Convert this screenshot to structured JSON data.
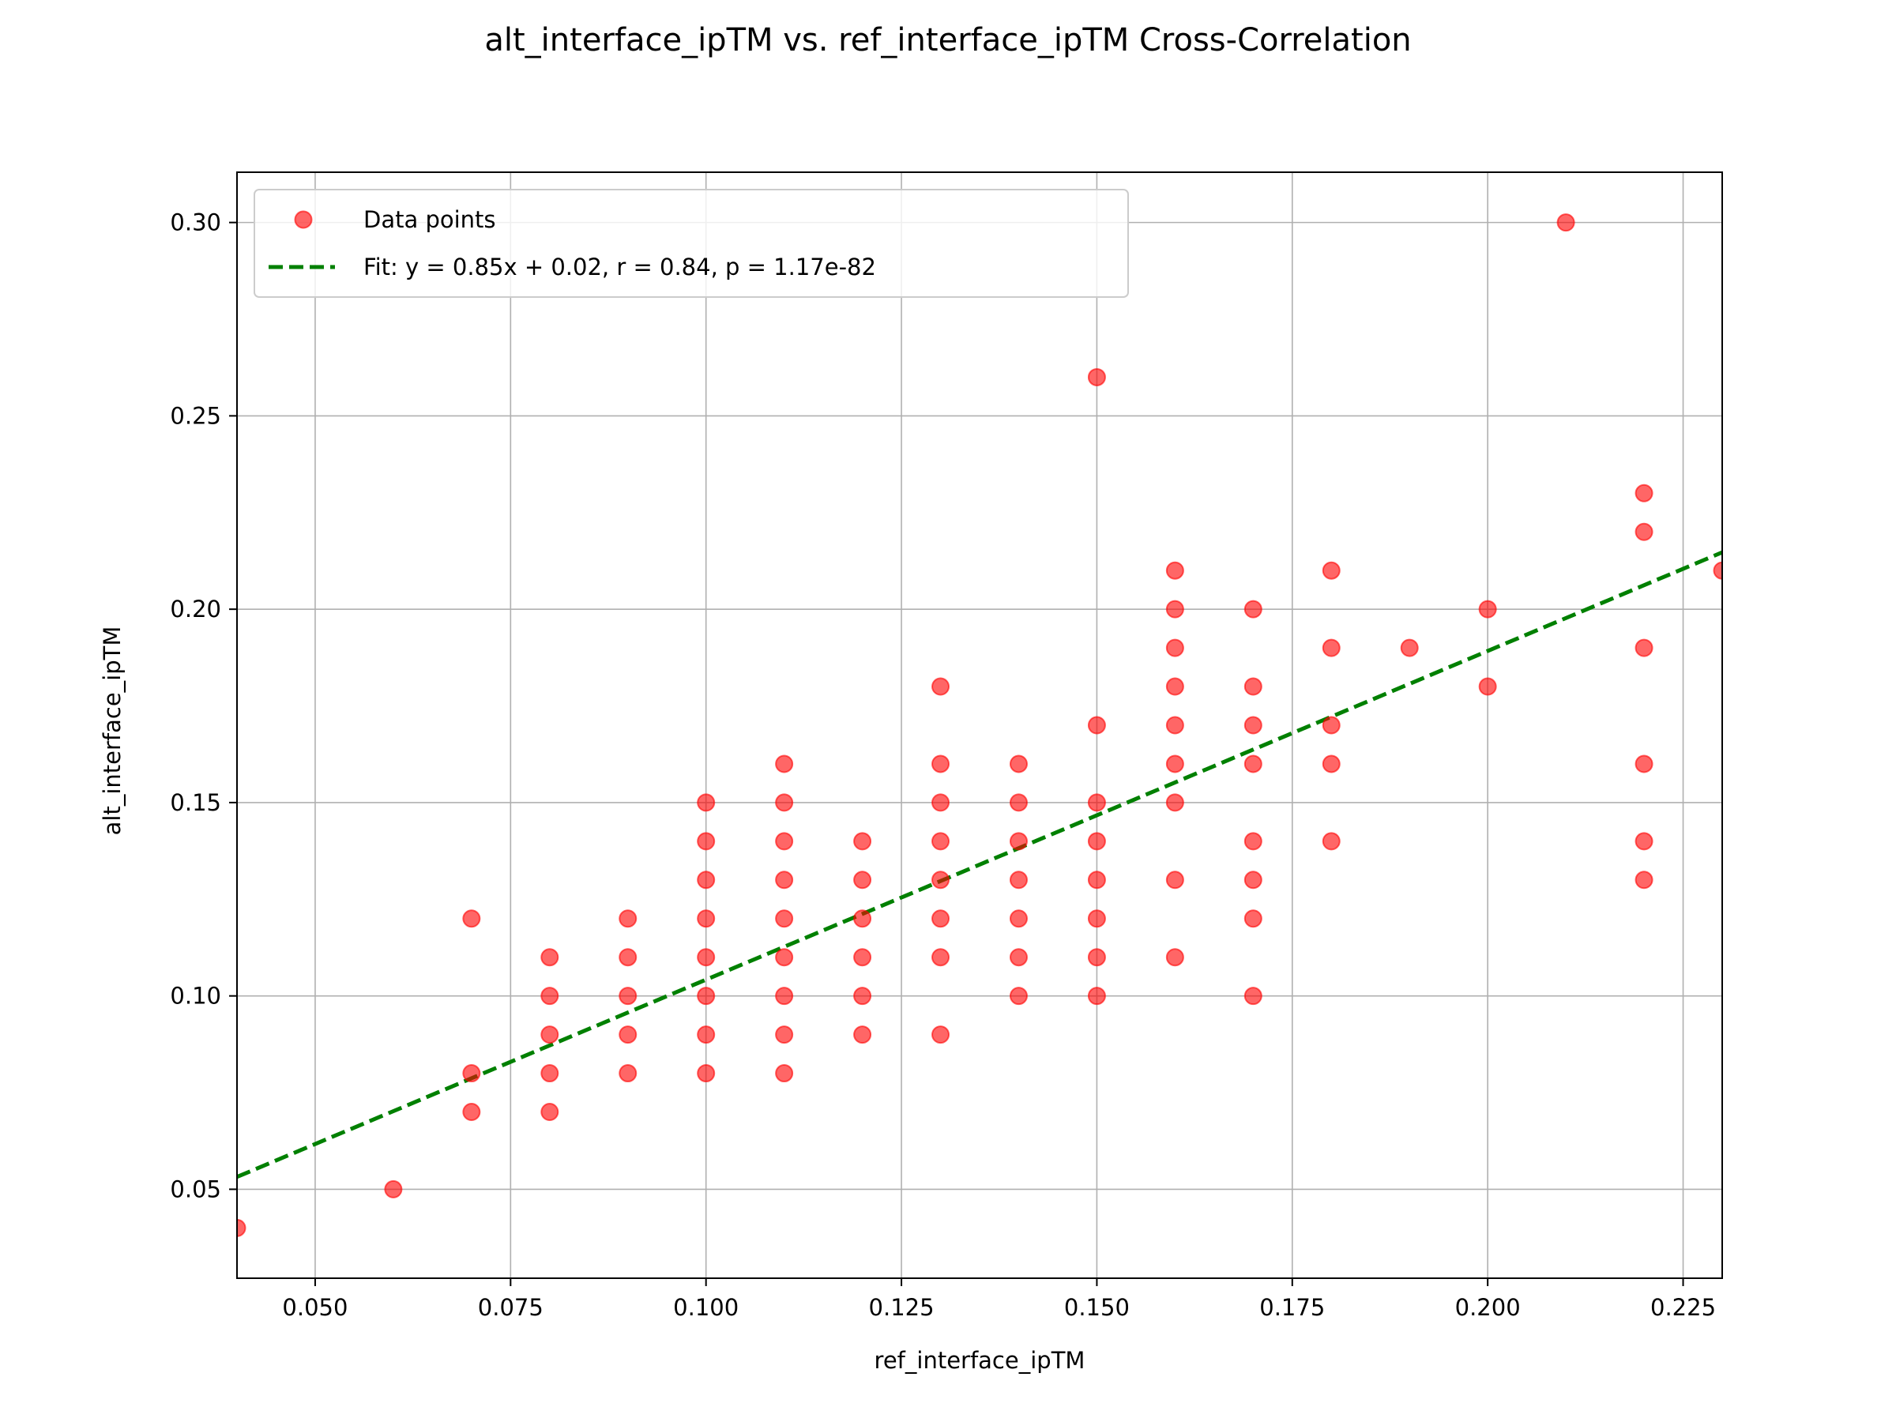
{
  "chart_data": {
    "type": "scatter",
    "title": "alt_interface_ipTM vs. ref_interface_ipTM Cross-Correlation",
    "xlabel": "ref_interface_ipTM",
    "ylabel": "alt_interface_ipTM",
    "xlim": [
      0.04,
      0.23
    ],
    "ylim": [
      0.027,
      0.313
    ],
    "xticks": [
      "0.050",
      "0.075",
      "0.100",
      "0.125",
      "0.150",
      "0.175",
      "0.200",
      "0.225"
    ],
    "yticks": [
      "0.05",
      "0.10",
      "0.15",
      "0.20",
      "0.25",
      "0.30"
    ],
    "grid": true,
    "legend_position": "top-left",
    "series": [
      {
        "name": "Data points",
        "color": "#ff0000",
        "points": [
          [
            0.04,
            0.04
          ],
          [
            0.06,
            0.05
          ],
          [
            0.07,
            0.12
          ],
          [
            0.07,
            0.08
          ],
          [
            0.07,
            0.07
          ],
          [
            0.08,
            0.11
          ],
          [
            0.08,
            0.1
          ],
          [
            0.08,
            0.09
          ],
          [
            0.08,
            0.08
          ],
          [
            0.08,
            0.07
          ],
          [
            0.09,
            0.12
          ],
          [
            0.09,
            0.11
          ],
          [
            0.09,
            0.1
          ],
          [
            0.09,
            0.09
          ],
          [
            0.09,
            0.08
          ],
          [
            0.1,
            0.15
          ],
          [
            0.1,
            0.14
          ],
          [
            0.1,
            0.13
          ],
          [
            0.1,
            0.12
          ],
          [
            0.1,
            0.11
          ],
          [
            0.1,
            0.1
          ],
          [
            0.1,
            0.09
          ],
          [
            0.1,
            0.08
          ],
          [
            0.11,
            0.16
          ],
          [
            0.11,
            0.15
          ],
          [
            0.11,
            0.14
          ],
          [
            0.11,
            0.13
          ],
          [
            0.11,
            0.12
          ],
          [
            0.11,
            0.11
          ],
          [
            0.11,
            0.1
          ],
          [
            0.11,
            0.09
          ],
          [
            0.11,
            0.08
          ],
          [
            0.12,
            0.14
          ],
          [
            0.12,
            0.13
          ],
          [
            0.12,
            0.12
          ],
          [
            0.12,
            0.11
          ],
          [
            0.12,
            0.1
          ],
          [
            0.12,
            0.09
          ],
          [
            0.13,
            0.18
          ],
          [
            0.13,
            0.16
          ],
          [
            0.13,
            0.15
          ],
          [
            0.13,
            0.14
          ],
          [
            0.13,
            0.13
          ],
          [
            0.13,
            0.12
          ],
          [
            0.13,
            0.11
          ],
          [
            0.13,
            0.09
          ],
          [
            0.14,
            0.16
          ],
          [
            0.14,
            0.15
          ],
          [
            0.14,
            0.14
          ],
          [
            0.14,
            0.13
          ],
          [
            0.14,
            0.12
          ],
          [
            0.14,
            0.11
          ],
          [
            0.14,
            0.1
          ],
          [
            0.15,
            0.26
          ],
          [
            0.15,
            0.17
          ],
          [
            0.15,
            0.15
          ],
          [
            0.15,
            0.14
          ],
          [
            0.15,
            0.13
          ],
          [
            0.15,
            0.12
          ],
          [
            0.15,
            0.11
          ],
          [
            0.15,
            0.1
          ],
          [
            0.16,
            0.21
          ],
          [
            0.16,
            0.2
          ],
          [
            0.16,
            0.19
          ],
          [
            0.16,
            0.18
          ],
          [
            0.16,
            0.17
          ],
          [
            0.16,
            0.16
          ],
          [
            0.16,
            0.15
          ],
          [
            0.16,
            0.13
          ],
          [
            0.16,
            0.11
          ],
          [
            0.17,
            0.2
          ],
          [
            0.17,
            0.18
          ],
          [
            0.17,
            0.17
          ],
          [
            0.17,
            0.16
          ],
          [
            0.17,
            0.14
          ],
          [
            0.17,
            0.13
          ],
          [
            0.17,
            0.12
          ],
          [
            0.17,
            0.1
          ],
          [
            0.18,
            0.21
          ],
          [
            0.18,
            0.19
          ],
          [
            0.18,
            0.17
          ],
          [
            0.18,
            0.16
          ],
          [
            0.18,
            0.14
          ],
          [
            0.19,
            0.19
          ],
          [
            0.2,
            0.2
          ],
          [
            0.2,
            0.18
          ],
          [
            0.21,
            0.3
          ],
          [
            0.22,
            0.23
          ],
          [
            0.22,
            0.22
          ],
          [
            0.22,
            0.19
          ],
          [
            0.22,
            0.16
          ],
          [
            0.22,
            0.14
          ],
          [
            0.22,
            0.13
          ],
          [
            0.23,
            0.21
          ]
        ]
      },
      {
        "name": "Fit: y = 0.85x + 0.02,  r = 0.84, p = 1.17e-82",
        "color": "#008000",
        "line_style": "dashed",
        "slope": 0.85,
        "intercept": 0.0192
      }
    ]
  }
}
